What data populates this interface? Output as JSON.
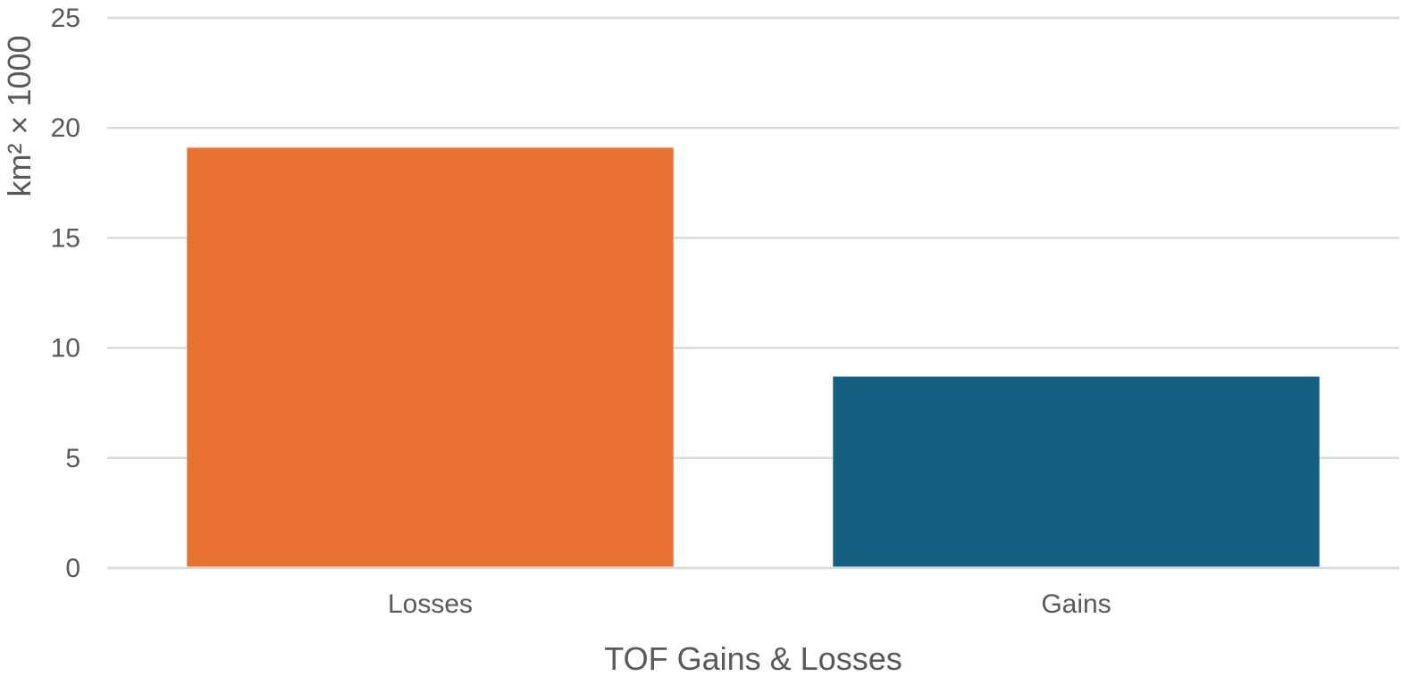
{
  "chart_data": {
    "type": "bar",
    "categories": [
      "Losses",
      "Gains"
    ],
    "values": [
      19.1,
      8.7
    ],
    "colors": [
      "#E97132",
      "#156082"
    ],
    "title": "",
    "xlabel": "TOF Gains & Losses",
    "ylabel": "km² × 1000",
    "ylim": [
      0,
      25
    ],
    "yticks": [
      0,
      5,
      10,
      15,
      20,
      25
    ],
    "grid": true,
    "legend": "none"
  }
}
